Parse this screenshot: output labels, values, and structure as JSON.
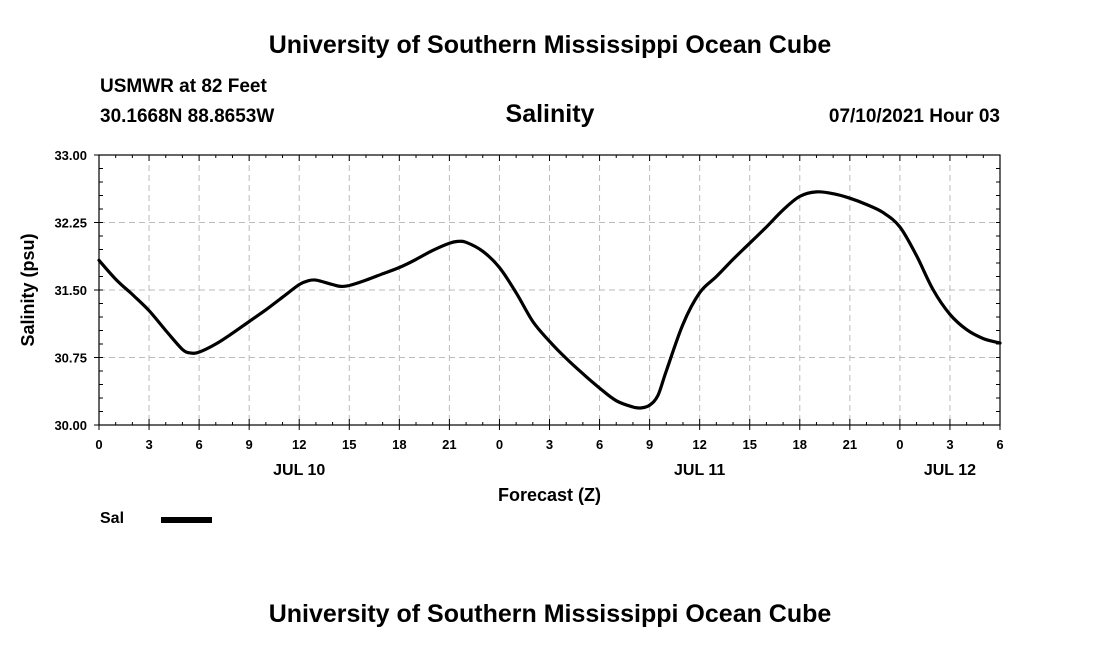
{
  "header": {
    "title_top": "University of Southern Mississippi Ocean Cube",
    "station": "USMWR at 82 Feet",
    "coords": "30.1668N  88.8653W",
    "variable": "Salinity",
    "datetime": "07/10/2021 Hour 03"
  },
  "footer": {
    "title_bottom": "University of Southern Mississippi Ocean Cube"
  },
  "legend": {
    "label": "Sal",
    "color": "#000000"
  },
  "chart_data": {
    "type": "line",
    "title": "Salinity",
    "xlabel": "Forecast (Z)",
    "ylabel": "Salinity (psu)",
    "x_unit": "hours from JUL 10 00Z",
    "xlim": [
      0,
      54
    ],
    "ylim": [
      30.0,
      33.0
    ],
    "grid": true,
    "legend_position": "bottom-left",
    "x_ticks": [
      {
        "x": 0,
        "label": "0"
      },
      {
        "x": 3,
        "label": "3"
      },
      {
        "x": 6,
        "label": "6"
      },
      {
        "x": 9,
        "label": "9"
      },
      {
        "x": 12,
        "label": "12"
      },
      {
        "x": 15,
        "label": "15"
      },
      {
        "x": 18,
        "label": "18"
      },
      {
        "x": 21,
        "label": "21"
      },
      {
        "x": 24,
        "label": "0"
      },
      {
        "x": 27,
        "label": "3"
      },
      {
        "x": 30,
        "label": "6"
      },
      {
        "x": 33,
        "label": "9"
      },
      {
        "x": 36,
        "label": "12"
      },
      {
        "x": 39,
        "label": "15"
      },
      {
        "x": 42,
        "label": "18"
      },
      {
        "x": 45,
        "label": "21"
      },
      {
        "x": 48,
        "label": "0"
      },
      {
        "x": 51,
        "label": "3"
      },
      {
        "x": 54,
        "label": "6"
      }
    ],
    "date_labels": [
      {
        "x": 12,
        "label": "JUL 10"
      },
      {
        "x": 36,
        "label": "JUL 11"
      },
      {
        "x": 51,
        "label": "JUL 12"
      }
    ],
    "y_ticks": [
      {
        "y": 30.0,
        "label": "30.00"
      },
      {
        "y": 30.75,
        "label": "30.75"
      },
      {
        "y": 31.5,
        "label": "31.50"
      },
      {
        "y": 32.25,
        "label": "32.25"
      },
      {
        "y": 33.0,
        "label": "33.00"
      }
    ],
    "series": [
      {
        "name": "Sal",
        "color": "#000000",
        "x": [
          0,
          1,
          2,
          3,
          4,
          5,
          5.5,
          6,
          7,
          8,
          9,
          10,
          11,
          12,
          12.5,
          13,
          14,
          14.5,
          15,
          16,
          17,
          18,
          19,
          20,
          21,
          21.5,
          22,
          23,
          24,
          25,
          26,
          27,
          28,
          29,
          30,
          31,
          32,
          32.5,
          33,
          33.5,
          34,
          35,
          36,
          37,
          38,
          39,
          40,
          41,
          42,
          43,
          44,
          45,
          46,
          47,
          48,
          49,
          50,
          51,
          52,
          53,
          54
        ],
        "y": [
          31.83,
          31.62,
          31.45,
          31.27,
          31.05,
          30.84,
          30.8,
          30.81,
          30.9,
          31.02,
          31.15,
          31.28,
          31.42,
          31.56,
          31.6,
          31.61,
          31.56,
          31.54,
          31.55,
          31.61,
          31.68,
          31.75,
          31.84,
          31.94,
          32.02,
          32.04,
          32.03,
          31.93,
          31.75,
          31.47,
          31.15,
          30.93,
          30.74,
          30.57,
          30.41,
          30.27,
          30.2,
          30.19,
          30.22,
          30.33,
          30.6,
          31.12,
          31.47,
          31.65,
          31.84,
          32.02,
          32.2,
          32.39,
          32.54,
          32.59,
          32.57,
          32.52,
          32.45,
          32.36,
          32.2,
          31.88,
          31.5,
          31.23,
          31.06,
          30.96,
          30.91
        ]
      }
    ]
  }
}
